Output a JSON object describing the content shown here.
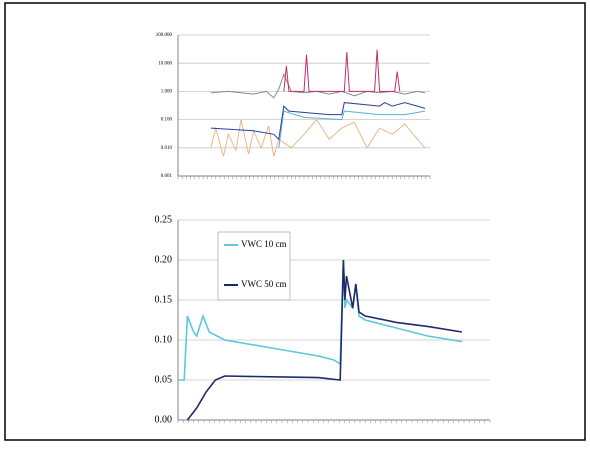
{
  "chart_data": [
    {
      "type": "line",
      "yscale": "log",
      "xlim": [
        0,
        100
      ],
      "ylim": [
        0.001,
        100
      ],
      "grid": true,
      "yticks": [
        {
          "value": 100,
          "label": "100.000"
        },
        {
          "value": 10,
          "label": "10.000"
        },
        {
          "value": 1,
          "label": "1.000"
        },
        {
          "value": 0.1,
          "label": "0.100"
        },
        {
          "value": 0.01,
          "label": "0.010"
        },
        {
          "value": 0.001,
          "label": "0.001"
        }
      ],
      "series": [
        {
          "color": "#8a8a8a",
          "x": [
            13,
            20,
            30,
            35,
            38,
            40,
            42,
            45,
            50,
            55,
            60,
            65,
            70,
            75,
            80,
            85,
            90,
            95,
            98
          ],
          "values": [
            0.9,
            1,
            0.8,
            1,
            0.6,
            1.2,
            4,
            1,
            0.9,
            1,
            0.8,
            1,
            0.7,
            1,
            0.9,
            1,
            0.8,
            1,
            0.9
          ]
        },
        {
          "color": "#e8b98a",
          "x": [
            13,
            15,
            18,
            20,
            23,
            25,
            28,
            30,
            33,
            36,
            38,
            40,
            45,
            50,
            55,
            60,
            65,
            70,
            75,
            80,
            85,
            90,
            95,
            98
          ],
          "values": [
            0.01,
            0.05,
            0.005,
            0.03,
            0.008,
            0.1,
            0.006,
            0.04,
            0.01,
            0.06,
            0.005,
            0.02,
            0.01,
            0.03,
            0.1,
            0.02,
            0.05,
            0.08,
            0.01,
            0.05,
            0.03,
            0.07,
            0.02,
            0.01
          ]
        },
        {
          "color": "#5ab4d6",
          "x": [
            40,
            42,
            50,
            65,
            66,
            80,
            90,
            98
          ],
          "values": [
            0.01,
            0.2,
            0.12,
            0.1,
            0.2,
            0.15,
            0.15,
            0.2
          ]
        },
        {
          "color": "#2b3f9e",
          "x": [
            13,
            30,
            38,
            40,
            42,
            44,
            60,
            65,
            66,
            80,
            82,
            85,
            90,
            95,
            98
          ],
          "values": [
            0.05,
            0.04,
            0.03,
            0.02,
            0.3,
            0.2,
            0.15,
            0.15,
            0.4,
            0.3,
            0.4,
            0.3,
            0.4,
            0.3,
            0.25
          ]
        },
        {
          "color": "#c0306a",
          "x": [
            42,
            43,
            44,
            50,
            51,
            52,
            66,
            67,
            68,
            78,
            79,
            80,
            86,
            87,
            88
          ],
          "values": [
            1,
            8,
            1,
            1,
            20,
            1,
            1,
            25,
            1,
            1,
            30,
            1,
            1,
            5,
            1
          ]
        }
      ]
    },
    {
      "type": "line",
      "xlim": [
        0,
        100
      ],
      "ylim": [
        0,
        0.25
      ],
      "grid": true,
      "yticks": [
        {
          "value": 0,
          "label": "0.00"
        },
        {
          "value": 0.05,
          "label": "0.05"
        },
        {
          "value": 0.1,
          "label": "0.10"
        },
        {
          "value": 0.15,
          "label": "0.15"
        },
        {
          "value": 0.2,
          "label": "0.20"
        },
        {
          "value": 0.25,
          "label": "0.25"
        }
      ],
      "series": [
        {
          "name": "VWC 10 cm",
          "color": "#5cc8dc",
          "x": [
            0,
            2,
            3,
            5,
            6,
            8,
            10,
            15,
            30,
            45,
            50,
            52,
            53,
            53.5,
            54,
            56,
            57,
            58,
            60,
            70,
            80,
            91
          ],
          "values": [
            0.05,
            0.05,
            0.13,
            0.11,
            0.105,
            0.13,
            0.11,
            0.1,
            0.09,
            0.08,
            0.075,
            0.07,
            0.2,
            0.14,
            0.15,
            0.14,
            0.17,
            0.13,
            0.125,
            0.115,
            0.105,
            0.098
          ]
        },
        {
          "name": "VWC 50 cm",
          "color": "#1f2a6b",
          "x": [
            3,
            6,
            9,
            12,
            15,
            30,
            45,
            52,
            53,
            53.5,
            54,
            56,
            57,
            58,
            60,
            70,
            80,
            91
          ],
          "values": [
            0,
            0.015,
            0.035,
            0.05,
            0.055,
            0.054,
            0.053,
            0.05,
            0.2,
            0.15,
            0.18,
            0.14,
            0.17,
            0.135,
            0.13,
            0.122,
            0.117,
            0.11
          ]
        }
      ]
    }
  ]
}
